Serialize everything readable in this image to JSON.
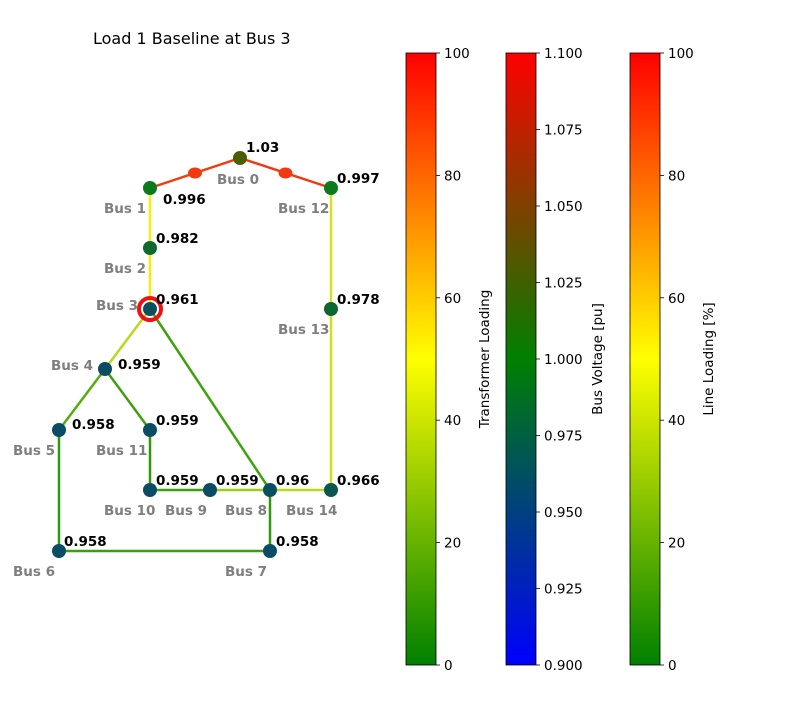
{
  "title": "Load 1 Baseline at Bus 3",
  "network": {
    "buses": [
      {
        "id": 0,
        "name": "Bus 0",
        "voltage": "1.03",
        "color": "#4a5e00"
      },
      {
        "id": 1,
        "name": "Bus 1",
        "voltage": "0.996",
        "color": "#0b7a1c"
      },
      {
        "id": 2,
        "name": "Bus 2",
        "voltage": "0.982",
        "color": "#0c6a2e"
      },
      {
        "id": 3,
        "name": "Bus 3",
        "voltage": "0.961",
        "color": "#0a4f5e"
      },
      {
        "id": 4,
        "name": "Bus 4",
        "voltage": "0.959",
        "color": "#0a4d62"
      },
      {
        "id": 5,
        "name": "Bus 5",
        "voltage": "0.958",
        "color": "#0a4d64"
      },
      {
        "id": 6,
        "name": "Bus 6",
        "voltage": "0.958",
        "color": "#0a4d64"
      },
      {
        "id": 7,
        "name": "Bus 7",
        "voltage": "0.958",
        "color": "#0a4d64"
      },
      {
        "id": 8,
        "name": "Bus 8",
        "voltage": "0.96",
        "color": "#0a4f60"
      },
      {
        "id": 9,
        "name": "Bus 9",
        "voltage": "0.959",
        "color": "#0a4d62"
      },
      {
        "id": 10,
        "name": "Bus 10",
        "voltage": "0.959",
        "color": "#0a4d62"
      },
      {
        "id": 11,
        "name": "Bus 11",
        "voltage": "0.959",
        "color": "#0a4d62"
      },
      {
        "id": 12,
        "name": "Bus 12",
        "voltage": "0.997",
        "color": "#0b7b1b"
      },
      {
        "id": 13,
        "name": "Bus 13",
        "voltage": "0.978",
        "color": "#0c6632"
      },
      {
        "id": 14,
        "name": "Bus 14",
        "voltage": "0.966",
        "color": "#0b5650"
      }
    ],
    "lines": [
      {
        "from": 1,
        "to": 2,
        "color": "#f5f20a"
      },
      {
        "from": 2,
        "to": 3,
        "color": "#f2ee0c"
      },
      {
        "from": 3,
        "to": 4,
        "color": "#b8d81a"
      },
      {
        "from": 3,
        "to": 8,
        "color": "#3ea20c"
      },
      {
        "from": 4,
        "to": 5,
        "color": "#56ac0e"
      },
      {
        "from": 4,
        "to": 11,
        "color": "#3e9f0c"
      },
      {
        "from": 11,
        "to": 10,
        "color": "#2e9a0a"
      },
      {
        "from": 10,
        "to": 9,
        "color": "#3aa00c"
      },
      {
        "from": 9,
        "to": 8,
        "color": "#9ccc16"
      },
      {
        "from": 8,
        "to": 14,
        "color": "#bad81a"
      },
      {
        "from": 8,
        "to": 7,
        "color": "#2e9a0a"
      },
      {
        "from": 5,
        "to": 6,
        "color": "#2c9a0a"
      },
      {
        "from": 6,
        "to": 7,
        "color": "#3a9f0c"
      },
      {
        "from": 12,
        "to": 13,
        "color": "#d4e11e"
      },
      {
        "from": 13,
        "to": 14,
        "color": "#cfe01c"
      }
    ],
    "transformers": [
      {
        "from": 1,
        "to": 0,
        "color": "#f23a12"
      },
      {
        "from": 0,
        "to": 12,
        "color": "#f23a12"
      }
    ],
    "load_bus": 3,
    "load_marker_color": "#ee1111"
  },
  "colorbars": [
    {
      "label": "Transformer Loading",
      "ticks": [
        "0",
        "20",
        "40",
        "60",
        "80",
        "100"
      ],
      "range": [
        0,
        100
      ],
      "stops": [
        "#008000",
        "#ffff00",
        "#ff0000"
      ]
    },
    {
      "label": "Bus Voltage [pu]",
      "ticks": [
        "0.900",
        "0.925",
        "0.950",
        "0.975",
        "1.000",
        "1.025",
        "1.050",
        "1.075",
        "1.100"
      ],
      "range": [
        0.9,
        1.1
      ],
      "stops": [
        "#0000ff",
        "#008000",
        "#ff0000"
      ]
    },
    {
      "label": "Line Loading [%]",
      "ticks": [
        "0",
        "20",
        "40",
        "60",
        "80",
        "100"
      ],
      "range": [
        0,
        100
      ],
      "stops": [
        "#008000",
        "#ffff00",
        "#ff0000"
      ]
    }
  ]
}
